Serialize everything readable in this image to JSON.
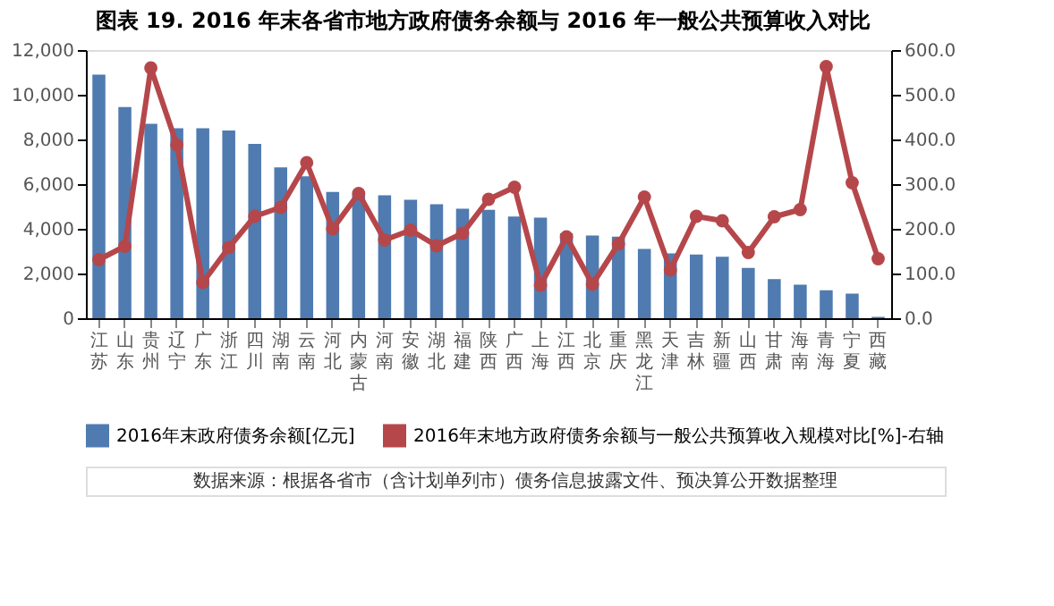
{
  "chart_data": {
    "type": "bar",
    "title": "图表 19. 2016 年末各省市地方政府债务余额与 2016 年一般公共预算收入对比",
    "categories": [
      "江苏",
      "山东",
      "贵州",
      "辽宁",
      "广东",
      "浙江",
      "四川",
      "湖南",
      "云南",
      "河北",
      "内蒙古",
      "河南",
      "安徽",
      "湖北",
      "福建",
      "陕西",
      "广西",
      "上海",
      "江西",
      "北京",
      "重庆",
      "黑龙江",
      "天津",
      "吉林",
      "新疆",
      "山西",
      "甘肃",
      "海南",
      "青海",
      "宁夏",
      "西藏"
    ],
    "series": [
      {
        "name": "2016年末政府债务余额[亿元]",
        "color": "#4f7bb0",
        "values": [
          10900,
          9450,
          8700,
          8500,
          8500,
          8400,
          7800,
          6750,
          6350,
          5650,
          5550,
          5500,
          5300,
          5100,
          4900,
          4850,
          4550,
          4500,
          3800,
          3700,
          3650,
          3100,
          2900,
          2850,
          2750,
          2250,
          1750,
          1500,
          1250,
          1100,
          60
        ]
      },
      {
        "name": "2016年末地方政府债务余额与一般公共预算收入规模对比[%]-右轴",
        "type": "line",
        "axis": "y2",
        "color": "#b5474b",
        "marker": "circle",
        "values": [
          131,
          161,
          560,
          388,
          80,
          158,
          228,
          248,
          348,
          200,
          279,
          175,
          197,
          162,
          190,
          266,
          293,
          74,
          182,
          76,
          166,
          271,
          108,
          228,
          218,
          147,
          227,
          243,
          563,
          303,
          133
        ]
      }
    ],
    "ylim": [
      0,
      12000
    ],
    "yticks": [
      {
        "value": 0,
        "label": "0"
      },
      {
        "value": 2000,
        "label": "2,000"
      },
      {
        "value": 4000,
        "label": "4,000"
      },
      {
        "value": 6000,
        "label": "6,000"
      },
      {
        "value": 8000,
        "label": "8,000"
      },
      {
        "value": 10000,
        "label": "10,000"
      },
      {
        "value": 12000,
        "label": "12,000"
      }
    ],
    "y2lim": [
      0,
      600
    ],
    "y2ticks": [
      {
        "value": 0,
        "label": "0.0"
      },
      {
        "value": 100,
        "label": "100.0"
      },
      {
        "value": 200,
        "label": "200.0"
      },
      {
        "value": 300,
        "label": "300.0"
      },
      {
        "value": 400,
        "label": "400.0"
      },
      {
        "value": 500,
        "label": "500.0"
      },
      {
        "value": 600,
        "label": "600.0"
      }
    ],
    "grid": false,
    "legend": "bottom",
    "annotations": [
      "数据来源：根据各省市（含计划单列市）债务信息披露文件、预决算公开数据整理"
    ]
  }
}
